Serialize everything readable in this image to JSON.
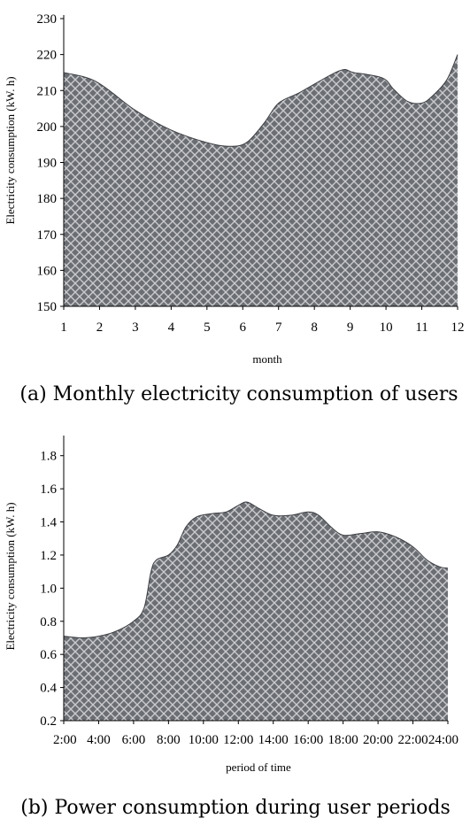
{
  "chart_data": [
    {
      "type": "area",
      "caption": "(a) Monthly electricity consumption of users",
      "xlabel": "month",
      "ylabel": "Electricity consumption (kW. h)",
      "xlim": [
        1,
        12
      ],
      "ylim": [
        150,
        230
      ],
      "yticks": [
        150,
        160,
        170,
        180,
        190,
        200,
        210,
        220,
        230
      ],
      "xticks": [
        1,
        2,
        3,
        4,
        5,
        6,
        7,
        8,
        9,
        10,
        11,
        12
      ],
      "tick_labels": [
        "1",
        "2",
        "3",
        "4",
        "5",
        "6",
        "7",
        "8",
        "9",
        "10",
        "11",
        "12"
      ],
      "points": [
        [
          1,
          215
        ],
        [
          1.9,
          212.5
        ],
        [
          3,
          204.5
        ],
        [
          4,
          199
        ],
        [
          5,
          195.5
        ],
        [
          5.6,
          194.5
        ],
        [
          6.1,
          195.5
        ],
        [
          6.6,
          201
        ],
        [
          7,
          206.5
        ],
        [
          7.6,
          209.5
        ],
        [
          8.7,
          215.5
        ],
        [
          9.1,
          215
        ],
        [
          9.9,
          213.5
        ],
        [
          10.2,
          210.5
        ],
        [
          10.6,
          207
        ],
        [
          11,
          206.5
        ],
        [
          11.3,
          208.5
        ],
        [
          11.7,
          213
        ],
        [
          12,
          220
        ]
      ],
      "fill_color": "#6b6e73",
      "pattern_color": "#c9cbce"
    },
    {
      "type": "area",
      "caption": "(b) Power consumption during user periods",
      "xlabel": "period of time",
      "ylabel": "Electricity consumption (kW. h)",
      "xlim": [
        2,
        24
      ],
      "ylim": [
        0.2,
        1.9
      ],
      "yticks": [
        0.2,
        0.4,
        0.6,
        0.8,
        1.0,
        1.2,
        1.4,
        1.6,
        1.8
      ],
      "ytick_labels": [
        "0.2",
        "0.4",
        "0.6",
        "0.8",
        "1.0",
        "1.2",
        "1.4",
        "1.6",
        "1.8"
      ],
      "xticks": [
        2,
        4,
        6,
        8,
        10,
        12,
        14,
        16,
        18,
        20,
        22,
        24
      ],
      "tick_labels": [
        "2:00",
        "4:00",
        "6:00",
        "8:00",
        "10:00",
        "12:00",
        "14:00",
        "16:00",
        "18:00",
        "20:00",
        "22:00",
        "24:00"
      ],
      "points": [
        [
          2,
          0.71
        ],
        [
          3,
          0.7
        ],
        [
          4,
          0.71
        ],
        [
          5,
          0.74
        ],
        [
          6,
          0.8
        ],
        [
          6.6,
          0.88
        ],
        [
          7,
          1.1
        ],
        [
          7.3,
          1.17
        ],
        [
          8,
          1.2
        ],
        [
          8.5,
          1.26
        ],
        [
          9,
          1.37
        ],
        [
          9.6,
          1.43
        ],
        [
          10.5,
          1.45
        ],
        [
          11.3,
          1.46
        ],
        [
          12,
          1.5
        ],
        [
          12.5,
          1.52
        ],
        [
          13.2,
          1.48
        ],
        [
          14,
          1.44
        ],
        [
          15,
          1.44
        ],
        [
          16,
          1.46
        ],
        [
          16.6,
          1.44
        ],
        [
          17.3,
          1.37
        ],
        [
          18,
          1.32
        ],
        [
          19,
          1.33
        ],
        [
          20,
          1.34
        ],
        [
          21,
          1.31
        ],
        [
          22,
          1.25
        ],
        [
          22.8,
          1.17
        ],
        [
          23.5,
          1.13
        ],
        [
          24,
          1.12
        ]
      ],
      "fill_color": "#6b6e73",
      "pattern_color": "#c9cbce"
    }
  ]
}
